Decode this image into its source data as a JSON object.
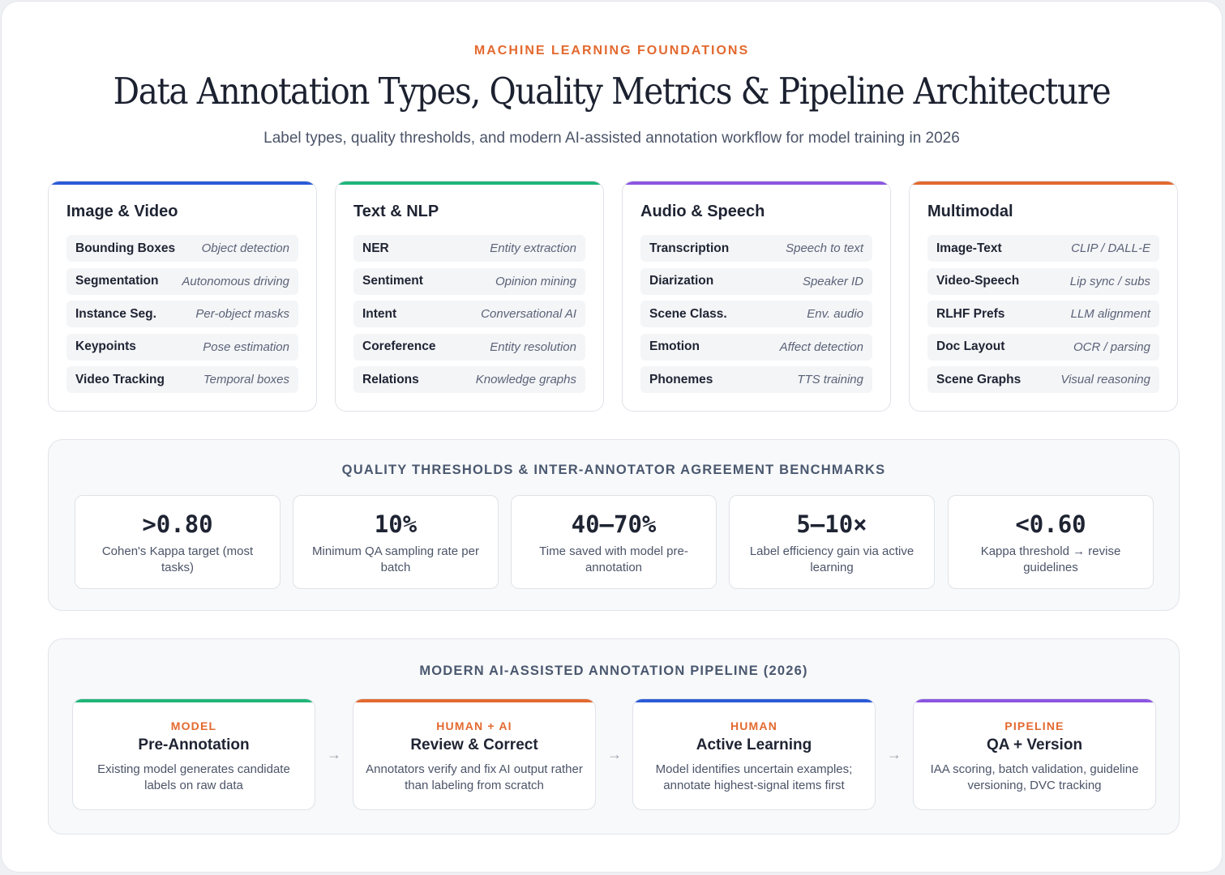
{
  "header": {
    "eyebrow": "MACHINE LEARNING FOUNDATIONS",
    "title": "Data Annotation Types, Quality Metrics & Pipeline Architecture",
    "subtitle": "Label types, quality thresholds, and modern AI-assisted annotation workflow for model training in 2026"
  },
  "categories": [
    {
      "title": "Image & Video",
      "accent": "#2b5bd7",
      "rows": [
        {
          "label": "Bounding Boxes",
          "use": "Object detection"
        },
        {
          "label": "Segmentation",
          "use": "Autonomous driving"
        },
        {
          "label": "Instance Seg.",
          "use": "Per-object masks"
        },
        {
          "label": "Keypoints",
          "use": "Pose estimation"
        },
        {
          "label": "Video Tracking",
          "use": "Temporal boxes"
        }
      ]
    },
    {
      "title": "Text & NLP",
      "accent": "#1fb57a",
      "rows": [
        {
          "label": "NER",
          "use": "Entity extraction"
        },
        {
          "label": "Sentiment",
          "use": "Opinion mining"
        },
        {
          "label": "Intent",
          "use": "Conversational AI"
        },
        {
          "label": "Coreference",
          "use": "Entity resolution"
        },
        {
          "label": "Relations",
          "use": "Knowledge graphs"
        }
      ]
    },
    {
      "title": "Audio & Speech",
      "accent": "#8b55e0",
      "rows": [
        {
          "label": "Transcription",
          "use": "Speech to text"
        },
        {
          "label": "Diarization",
          "use": "Speaker ID"
        },
        {
          "label": "Scene Class.",
          "use": "Env. audio"
        },
        {
          "label": "Emotion",
          "use": "Affect detection"
        },
        {
          "label": "Phonemes",
          "use": "TTS training"
        }
      ]
    },
    {
      "title": "Multimodal",
      "accent": "#e3692f",
      "rows": [
        {
          "label": "Image-Text",
          "use": "CLIP / DALL-E"
        },
        {
          "label": "Video-Speech",
          "use": "Lip sync / subs"
        },
        {
          "label": "RLHF Prefs",
          "use": "LLM alignment"
        },
        {
          "label": "Doc Layout",
          "use": "OCR / parsing"
        },
        {
          "label": "Scene Graphs",
          "use": "Visual reasoning"
        }
      ]
    }
  ],
  "quality": {
    "title": "QUALITY THRESHOLDS & INTER-ANNOTATOR AGREEMENT BENCHMARKS",
    "metrics": [
      {
        "value": ">0.80",
        "desc": "Cohen's Kappa target (most tasks)"
      },
      {
        "value": "10%",
        "desc": "Minimum QA sampling rate per batch"
      },
      {
        "value": "40–70%",
        "desc": "Time saved with model pre-annotation"
      },
      {
        "value": "5–10×",
        "desc": "Label efficiency gain via active learning"
      },
      {
        "value": "<0.60",
        "desc": "Kappa threshold → revise guidelines"
      }
    ]
  },
  "pipeline": {
    "title": "MODERN AI-ASSISTED ANNOTATION PIPELINE (2026)",
    "arrow": "→",
    "stages": [
      {
        "role": "MODEL",
        "name": "Pre-Annotation",
        "desc": "Existing model generates candidate labels on raw data",
        "accent": "#1fb57a"
      },
      {
        "role": "HUMAN + AI",
        "name": "Review & Correct",
        "desc": "Annotators verify and fix AI output rather than labeling from scratch",
        "accent": "#e3692f"
      },
      {
        "role": "HUMAN",
        "name": "Active Learning",
        "desc": "Model identifies uncertain examples; annotate highest-signal items first",
        "accent": "#2b5bd7"
      },
      {
        "role": "PIPELINE",
        "name": "QA + Version",
        "desc": "IAA scoring, batch validation, guideline versioning, DVC tracking",
        "accent": "#8b55e0"
      }
    ]
  }
}
